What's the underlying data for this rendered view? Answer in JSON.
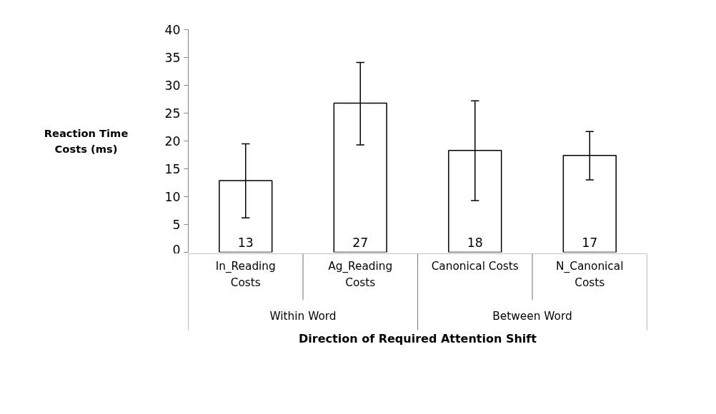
{
  "chart_data": {
    "type": "bar",
    "xlabel": "Direction of Required Attention Shift",
    "ylabel": "Reaction Time Costs (ms)",
    "categories": [
      "In_Reading Costs",
      "Ag_Reading Costs",
      "Canonical Costs",
      "N_Canonical Costs"
    ],
    "values": [
      12.9,
      26.8,
      18.3,
      17.4
    ],
    "value_labels": [
      "13",
      "27",
      "18",
      "17"
    ],
    "errors": [
      [
        6.2,
        19.5
      ],
      [
        19.3,
        34.1
      ],
      [
        9.3,
        27.2
      ],
      [
        13.0,
        21.7
      ]
    ],
    "color": "#ffffff",
    "annotations": [
      "Within Word",
      "Between Word"
    ],
    "ylim": [
      0,
      40
    ],
    "yticks": [
      0,
      5,
      10,
      15,
      20,
      25,
      30,
      35,
      40
    ],
    "grid": false
  }
}
